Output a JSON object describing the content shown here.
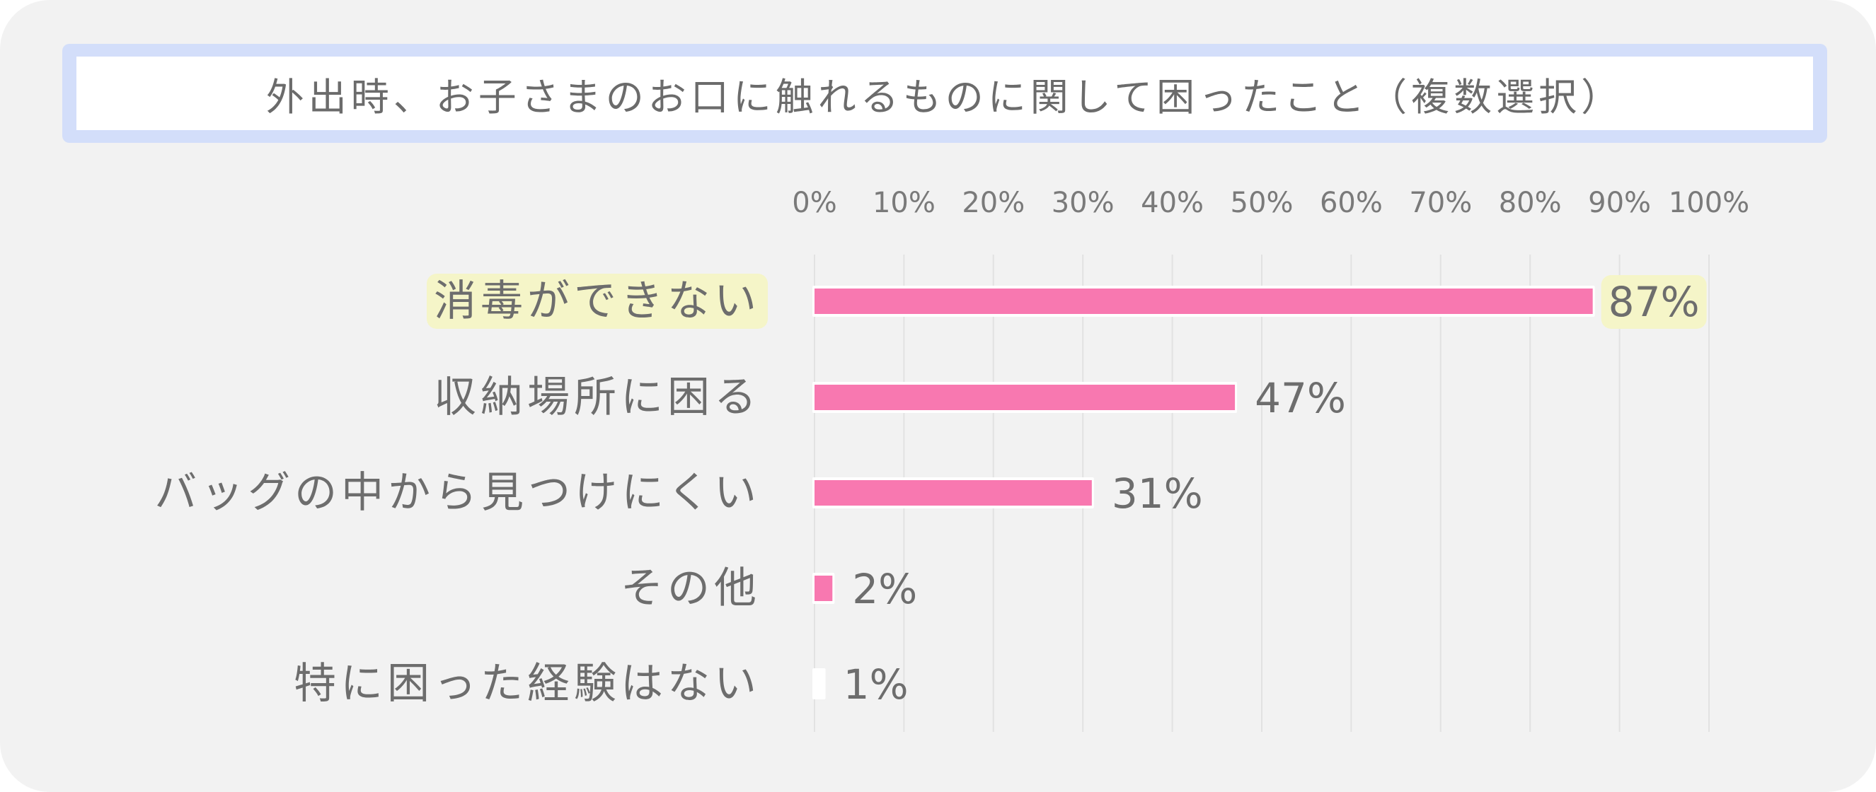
{
  "colors": {
    "background": "#f2f2f2",
    "title_border": "#d3defa",
    "bar": "#f878b0",
    "highlight": "#f5f5c8",
    "text": "#6d6d6d"
  },
  "chart_data": {
    "type": "bar",
    "orientation": "horizontal",
    "title": "外出時、お子さまのお口に触れるものに関して困ったこと（複数選択）",
    "xlim": [
      0,
      100
    ],
    "ticks": [
      "0%",
      "10%",
      "20%",
      "30%",
      "40%",
      "50%",
      "60%",
      "70%",
      "80%",
      "90%",
      "100%"
    ],
    "tick_values": [
      0,
      10,
      20,
      30,
      40,
      50,
      60,
      70,
      80,
      90,
      100
    ],
    "grid": true,
    "categories": [
      "消毒ができない",
      "収納場所に困る",
      "バッグの中から見つけにくい",
      "その他",
      "特に困った経験はない"
    ],
    "values": [
      87,
      47,
      31,
      2,
      1
    ],
    "value_labels": [
      "87%",
      "47%",
      "31%",
      "2%",
      "1%"
    ],
    "highlighted": "消毒ができない"
  }
}
